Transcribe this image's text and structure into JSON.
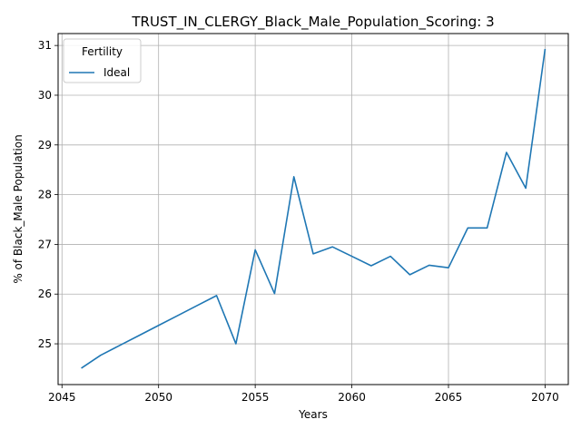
{
  "chart_data": {
    "type": "line",
    "title": "TRUST_IN_CLERGY_Black_Male_Population_Scoring: 3",
    "xlabel": "Years",
    "ylabel": "% of Black_Male Population",
    "xlim": [
      2044.8,
      2071.2
    ],
    "ylim": [
      24.18,
      31.24
    ],
    "xticks": [
      2045,
      2050,
      2055,
      2060,
      2065,
      2070
    ],
    "yticks": [
      25,
      26,
      27,
      28,
      29,
      30,
      31
    ],
    "grid": true,
    "legend": {
      "title": "Fertility",
      "placement": "top-left"
    },
    "series": [
      {
        "name": "Ideal",
        "color": "#1f77b4",
        "x": [
          2046,
          2047,
          2048,
          2049,
          2050,
          2051,
          2052,
          2053,
          2054,
          2055,
          2056,
          2057,
          2058,
          2059,
          2060,
          2061,
          2062,
          2063,
          2064,
          2065,
          2066,
          2067,
          2068,
          2069,
          2070
        ],
        "y": [
          24.51,
          24.77,
          24.97,
          25.17,
          25.37,
          25.57,
          25.77,
          25.97,
          25.0,
          26.89,
          26.01,
          28.36,
          26.81,
          26.95,
          26.76,
          26.57,
          26.76,
          26.39,
          26.58,
          26.53,
          27.33,
          27.33,
          28.85,
          28.13,
          30.93
        ]
      }
    ]
  }
}
